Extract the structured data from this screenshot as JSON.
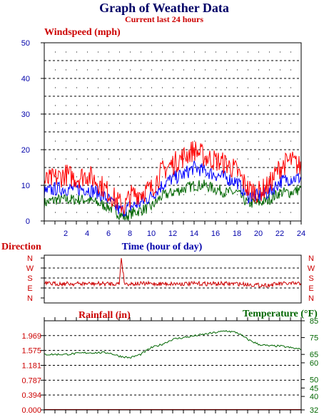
{
  "title": "Graph of Weather Data",
  "subtitle": "Current last 24 hours",
  "colors": {
    "windspeed_max": "#ff0000",
    "windspeed_avg": "#0000ff",
    "windspeed_min": "#006600",
    "direction": "#cc0000",
    "temperature": "#006600",
    "axis_blue": "#0000aa",
    "axis_red": "#cc0000",
    "title": "#000066"
  },
  "chart_data": [
    {
      "type": "line",
      "ylabel": "Windspeed (mph)",
      "xlabel": "Time (hour of day)",
      "ylim": [
        0,
        50
      ],
      "yticks": [
        "0",
        "10",
        "20",
        "30",
        "40",
        "50"
      ],
      "xlim": [
        0,
        24
      ],
      "xticks": [
        "2",
        "4",
        "6",
        "8",
        "10",
        "12",
        "14",
        "16",
        "18",
        "20",
        "22",
        "24"
      ],
      "grid": true,
      "x": [
        0,
        1,
        2,
        3,
        4,
        5,
        6,
        7,
        7.5,
        8,
        9,
        10,
        11,
        12,
        13,
        14,
        15,
        16,
        17,
        18,
        19,
        20,
        21,
        22,
        23,
        24
      ],
      "series": [
        {
          "values": [
            11,
            12,
            13,
            12,
            13,
            11,
            8,
            5,
            4,
            7,
            8,
            9,
            14,
            16,
            18,
            20,
            18,
            17,
            16,
            14,
            9,
            8,
            10,
            15,
            17,
            15
          ]
        },
        {
          "values": [
            8,
            9,
            9,
            9,
            9,
            8,
            6,
            3,
            3,
            4,
            5,
            7,
            10,
            12,
            13,
            15,
            14,
            13,
            12,
            11,
            7,
            7,
            8,
            11,
            12,
            12
          ]
        },
        {
          "values": [
            5,
            6,
            6,
            6,
            6,
            5,
            4,
            2,
            1,
            2,
            3,
            4,
            7,
            8,
            9,
            10,
            10,
            9,
            8,
            8,
            5,
            5,
            6,
            8,
            8,
            9
          ]
        }
      ]
    },
    {
      "type": "line",
      "ylabel": "Direction",
      "yticks": [
        "N",
        "W",
        "S",
        "E",
        "N"
      ],
      "x": [
        0,
        2,
        4,
        6,
        7,
        7.2,
        7.5,
        8,
        10,
        12,
        14,
        16,
        18,
        20,
        21,
        22,
        24
      ],
      "series": [
        {
          "values": [
            "S-E",
            "S-E",
            "S-E",
            "S-E",
            "S-E",
            "N",
            "S-E",
            "S-E",
            "S-E",
            "S-E",
            "S-E",
            "S-E",
            "S-E",
            "E",
            "E",
            "S-E",
            "S-E"
          ]
        }
      ]
    },
    {
      "type": "line",
      "ylabel_left": "Rainfall (in)",
      "ylabel_right": "Temperature (°F)",
      "ylim_left": [
        0.0,
        2.362
      ],
      "yticks_left": [
        "0.000",
        "0.394",
        "0.787",
        "1.181",
        "1.575",
        "1.969"
      ],
      "ylim_right": [
        32,
        85
      ],
      "yticks_right": [
        "32",
        "40",
        "45",
        "50",
        "60",
        "65",
        "75",
        "85"
      ],
      "x": [
        0,
        2,
        4,
        6,
        7,
        8,
        9,
        10,
        11,
        12,
        13,
        14,
        15,
        16,
        17,
        18,
        19,
        20,
        21,
        22,
        23,
        24
      ],
      "series": [
        {
          "name": "Rainfall (in)",
          "values": [
            0,
            0,
            0,
            0,
            0,
            0,
            0,
            0,
            0,
            0,
            0,
            0,
            0,
            0,
            0,
            0,
            0,
            0,
            0,
            0,
            0,
            0
          ]
        },
        {
          "name": "Temperature (°F)",
          "values": [
            65,
            65,
            66,
            66,
            64,
            63,
            65,
            69,
            71,
            74,
            75,
            76,
            77,
            78,
            79,
            78,
            74,
            71,
            70,
            70,
            69,
            68
          ]
        }
      ]
    }
  ]
}
